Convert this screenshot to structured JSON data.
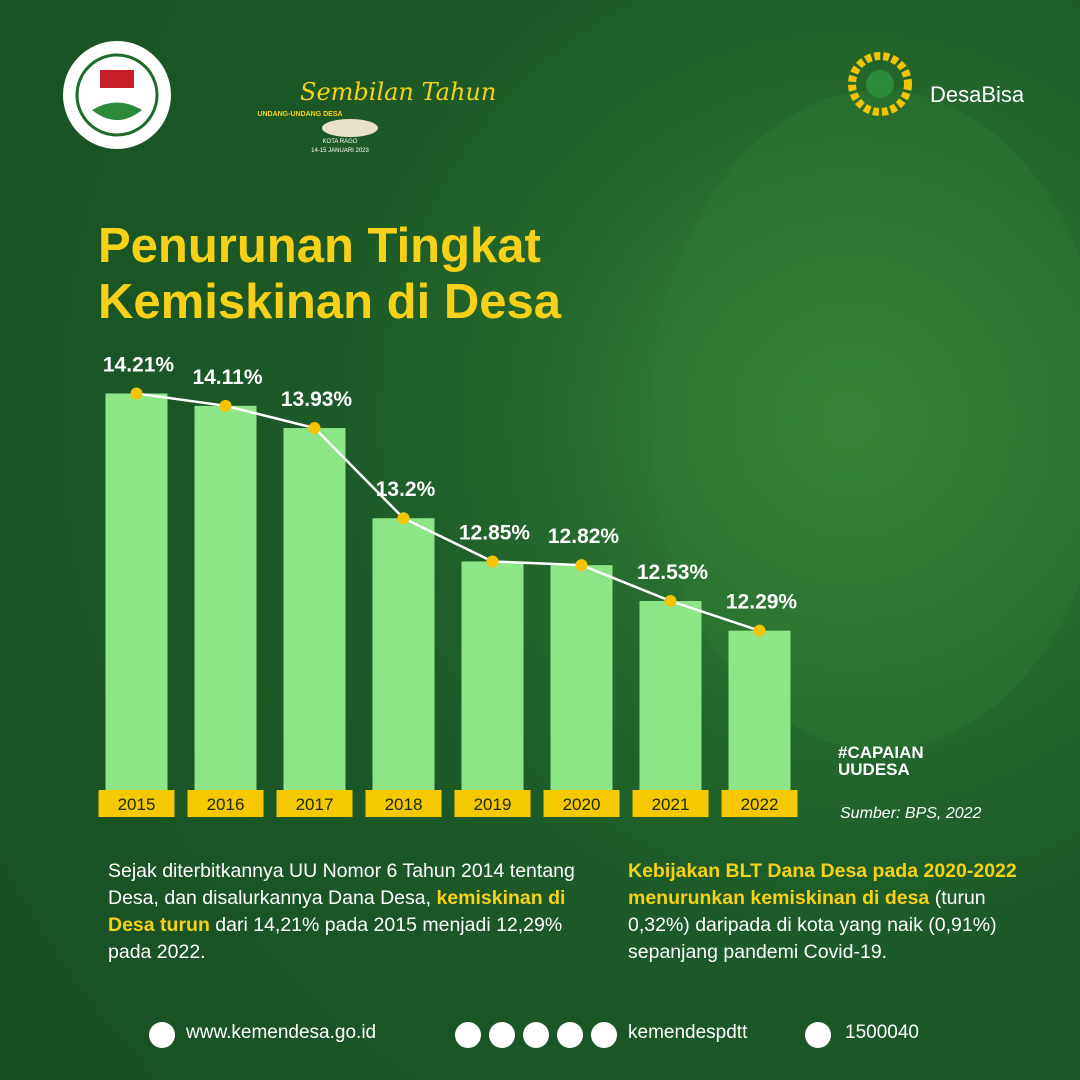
{
  "header": {
    "event_title": "Sembilan Tahun",
    "event_subtitle": "UNDANG-UNDANG DESA",
    "event_place": "KOTA RAGO",
    "event_date": "14-15 JANUARI 2023",
    "brand": "DesaBisa"
  },
  "chart_data": {
    "type": "bar",
    "title": "Penurunan Tingkat Kemiskinan di Desa",
    "categories": [
      "2015",
      "2016",
      "2017",
      "2018",
      "2019",
      "2020",
      "2021",
      "2022"
    ],
    "values": [
      14.21,
      14.11,
      13.93,
      13.2,
      12.85,
      12.82,
      12.53,
      12.29
    ],
    "value_labels": [
      "14.21%",
      "14.11%",
      "13.93%",
      "13.2%",
      "12.85%",
      "12.82%",
      "12.53%",
      "12.29%"
    ],
    "color": "#8ee588",
    "line_overlay": true,
    "line_color": "#ffffff",
    "point_color": "#f5c400",
    "ylim": [
      11,
      14.4
    ]
  },
  "tag": [
    "#CAPAIAN",
    "UUDESA"
  ],
  "source": "Sumber: BPS, 2022",
  "paragraph_left": [
    "Sejak diterbitkannya UU Nomor 6 Tahun 2014 tentang Desa, dan disalurkannya Dana Desa, ",
    "kemiskinan di Desa turun",
    " dari 14,21% pada 2015 menjadi 12,29% pada 2022."
  ],
  "paragraph_right": [
    "Kebijakan BLT Dana Desa pada 2020-2022 menurunkan kemiskinan di desa",
    " (turun 0,32%) daripada di kota yang naik (0,91%) sepanjang pandemi Covid-19."
  ],
  "footer": {
    "website": "www.kemendesa.go.id",
    "social": "kemendespdtt",
    "phone": "1500040"
  }
}
